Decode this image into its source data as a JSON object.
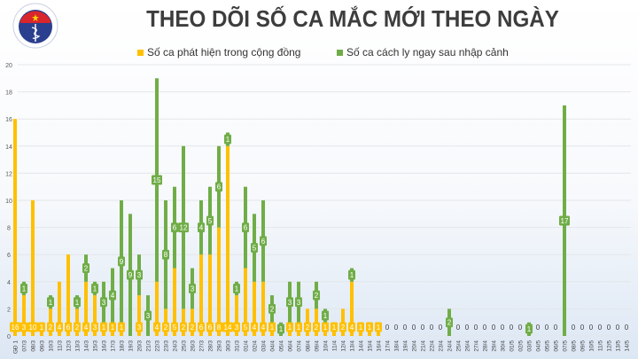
{
  "logo": {
    "top_text": "BỘ Y TẾ",
    "bottom_text": "MINISTRY OF HEALTH"
  },
  "colors": {
    "community": "#ffc000",
    "quarantine": "#70ad47",
    "grid": "#e3e6ea",
    "zero_label": "#404040"
  },
  "chart_data": {
    "type": "bar",
    "stacked": true,
    "title": "THEO DÕI SỐ CA MẮC MỚI THEO NGÀY",
    "xlabel": "",
    "ylabel": "",
    "ylim": [
      0,
      20
    ],
    "yticks": [
      0,
      2,
      4,
      6,
      8,
      10,
      12,
      14,
      16,
      18,
      20
    ],
    "grid": true,
    "legend_position": "top",
    "categories": [
      "GĐ 1",
      "07/3",
      "08/3",
      "09/3",
      "10/3",
      "11/3",
      "12/3",
      "13/3",
      "14/3",
      "15/3",
      "16/3",
      "17/3",
      "18/3",
      "19/3",
      "20/3",
      "21/3",
      "22/3",
      "23/3",
      "24/3",
      "25/3",
      "26/3",
      "27/3",
      "28/3",
      "29/3",
      "30/3",
      "31/3",
      "01/4",
      "02/4",
      "03/4",
      "04/4",
      "05/4",
      "06/4",
      "07/4",
      "08/4",
      "09/4",
      "10/4",
      "11/4",
      "12/4",
      "13/4",
      "14/4",
      "15/4",
      "16/4",
      "17/4",
      "18/4",
      "19/4",
      "20/4",
      "21/4",
      "22/4",
      "23/4",
      "24/4",
      "25/4",
      "26/4",
      "27/4",
      "28/4",
      "29/4",
      "30/4",
      "01/5",
      "02/5",
      "03/5",
      "04/5",
      "05/5",
      "06/5",
      "07/5",
      "08/5",
      "09/5",
      "10/5",
      "11/5",
      "12/5",
      "13/5",
      "14/5"
    ],
    "series": [
      {
        "name": "Số ca phát hiện trong cộng đồng",
        "values": [
          16,
          3,
          10,
          1,
          2,
          4,
          6,
          2,
          4,
          3,
          1,
          1,
          1,
          0,
          3,
          0,
          4,
          2,
          5,
          2,
          2,
          6,
          6,
          8,
          14,
          3,
          5,
          4,
          4,
          1,
          0,
          1,
          1,
          2,
          2,
          1,
          1,
          2,
          4,
          1,
          1,
          1,
          0,
          0,
          0,
          0,
          0,
          0,
          0,
          0,
          0,
          0,
          0,
          0,
          0,
          0,
          0,
          0,
          0,
          0,
          0,
          0,
          0,
          0,
          0,
          0,
          0,
          0,
          0,
          0
        ]
      },
      {
        "name": "Số ca cách ly ngay sau nhập cảnh",
        "values": [
          0,
          1,
          0,
          0,
          1,
          0,
          0,
          1,
          2,
          1,
          3,
          4,
          9,
          9,
          3,
          3,
          15,
          8,
          6,
          12,
          3,
          4,
          5,
          6,
          1,
          1,
          6,
          5,
          6,
          2,
          1,
          3,
          3,
          0,
          2,
          1,
          0,
          0,
          1,
          0,
          0,
          0,
          0,
          0,
          0,
          0,
          0,
          0,
          0,
          2,
          0,
          0,
          0,
          0,
          0,
          0,
          0,
          0,
          1,
          0,
          0,
          0,
          17,
          0,
          0,
          0,
          0,
          0,
          0,
          0
        ]
      }
    ],
    "zero_label": "0"
  }
}
